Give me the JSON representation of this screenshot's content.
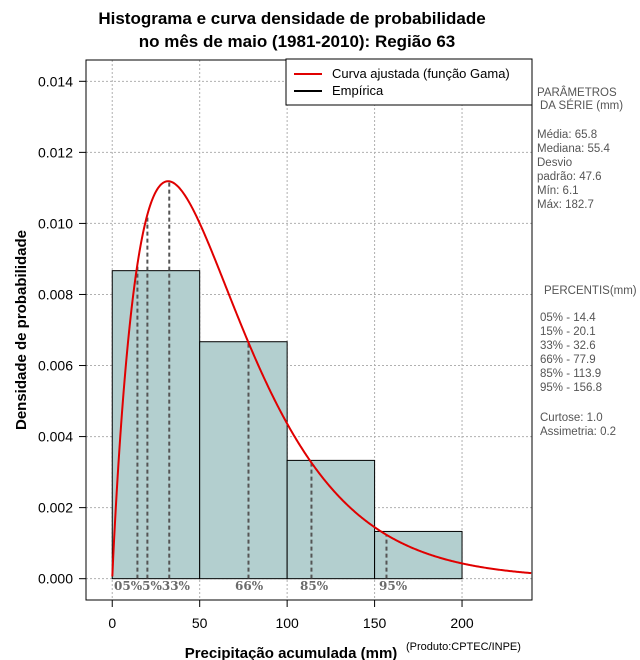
{
  "chart_data": {
    "type": "bar",
    "title_lines": [
      "Histograma e curva densidade de probabilidade",
      "no mês de maio (1981-2010): Região 63"
    ],
    "xlabel": "Precipitação acumulada (mm)",
    "ylabel": "Densidade de probabilidade",
    "credit": "(Produto:CPTEC/INPE)",
    "xlim": [
      -15,
      240
    ],
    "ylim": [
      -0.0006,
      0.0146
    ],
    "x_ticks": [
      0,
      50,
      100,
      150,
      200
    ],
    "x_tick_labels": [
      "0",
      "50",
      "100",
      "150",
      "200"
    ],
    "y_ticks": [
      0.0,
      0.002,
      0.004,
      0.006,
      0.008,
      0.01,
      0.012,
      0.014
    ],
    "y_tick_labels": [
      "0.000",
      "0.002",
      "0.004",
      "0.006",
      "0.008",
      "0.010",
      "0.012",
      "0.014"
    ],
    "grid": true,
    "bins": [
      {
        "x0": 0,
        "x1": 50,
        "density": 0.00867
      },
      {
        "x0": 50,
        "x1": 100,
        "density": 0.00667
      },
      {
        "x0": 100,
        "x1": 150,
        "density": 0.00333
      },
      {
        "x0": 150,
        "x1": 200,
        "density": 0.00133
      }
    ],
    "gamma_fit": {
      "shape": 1.95,
      "scale": 33.6
    },
    "legend": [
      {
        "label": "Curva ajustada (função Gama)",
        "color": "#e00000"
      },
      {
        "label": "Empírica",
        "color": "#000000"
      }
    ],
    "legend_position": "top-right",
    "percentile_markers": [
      {
        "label": "05%",
        "value": 14.4
      },
      {
        "label": "15%",
        "value": 20.1
      },
      {
        "label": "33%",
        "value": 32.6
      },
      {
        "label": "66%",
        "value": 77.9
      },
      {
        "label": "85%",
        "value": 113.9
      },
      {
        "label": "95%",
        "value": 156.8
      }
    ],
    "marker_label_text": "05%5%33%",
    "marker_labels": [
      "66%",
      "85%",
      "95%"
    ]
  },
  "side_panel": {
    "params_title_1": "PARÂMETROS",
    "params_title_2": "DA SÉRIE (mm)",
    "stats": [
      "Média:  65.8",
      "Mediana:  55.4",
      "Desvio",
      "padrão:  47.6",
      "Mín:  6.1",
      "Máx:  182.7"
    ],
    "percentis_title": "PERCENTIS(mm)",
    "percentis": [
      "05% -  14.4",
      "15% -  20.1",
      "33% -  32.6",
      "66% -  77.9",
      "85% -  113.9",
      "95% -  156.8"
    ],
    "shape": [
      "Curtose:  1.0",
      "Assimetria:  0.2"
    ]
  },
  "colors": {
    "bar_fill": "#b3cfcf",
    "bar_stroke": "#000000",
    "curve": "#e00000",
    "grid": "#b0b0b0",
    "marker": "#555555"
  }
}
